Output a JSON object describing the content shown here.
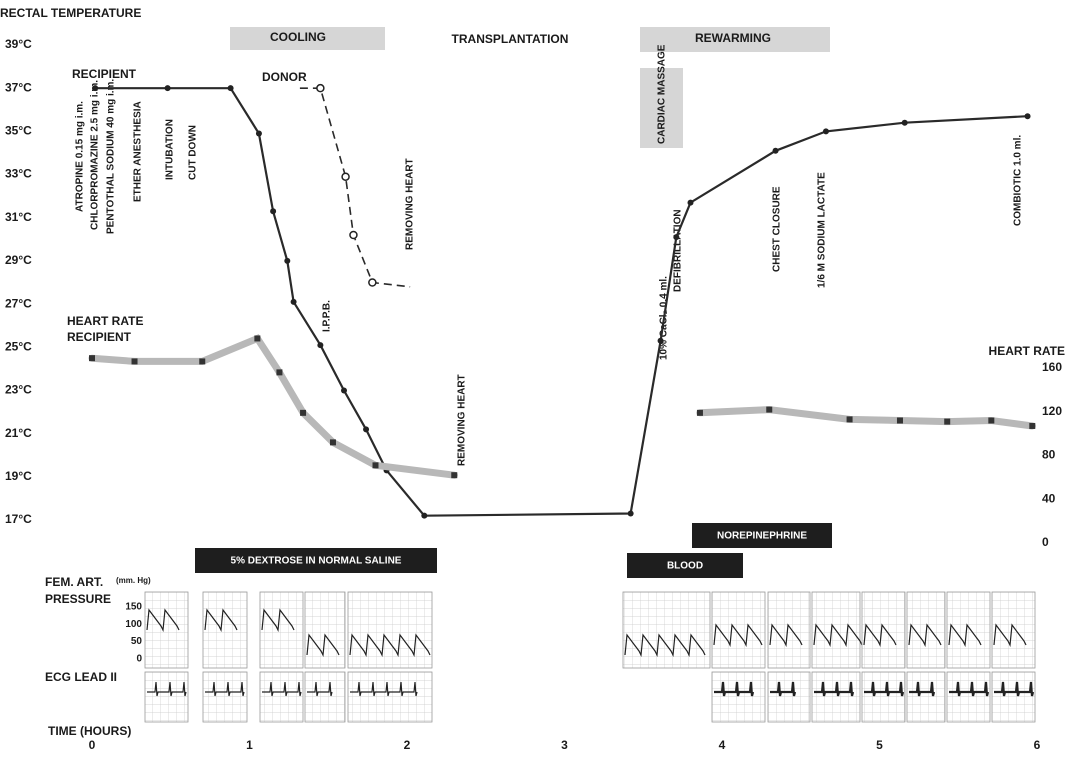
{
  "chart_data": {
    "type": "line",
    "y_label": "RECTAL TEMPERATURE",
    "y2_label": "HEART RATE",
    "x_label": "TIME (HOURS)",
    "xlim": [
      0,
      6
    ],
    "xticks": [
      0,
      1,
      2,
      3,
      4,
      5,
      6
    ],
    "ylim": [
      17,
      39
    ],
    "yticks": [
      {
        "value": 39,
        "label": "39°C"
      },
      {
        "value": 37,
        "label": "37°C"
      },
      {
        "value": 35,
        "label": "35°C"
      },
      {
        "value": 33,
        "label": "33°C"
      },
      {
        "value": 31,
        "label": "31°C"
      },
      {
        "value": 29,
        "label": "29°C"
      },
      {
        "value": 27,
        "label": "27°C"
      },
      {
        "value": 25,
        "label": "25°C"
      },
      {
        "value": 23,
        "label": "23°C"
      },
      {
        "value": 21,
        "label": "21°C"
      },
      {
        "value": 19,
        "label": "19°C"
      },
      {
        "value": 17,
        "label": "17°C"
      }
    ],
    "y2lim": [
      0,
      160
    ],
    "y2ticks": [
      0,
      40,
      80,
      120,
      160
    ],
    "series": [
      {
        "name": "RECIPIENT",
        "color": "#2a2a2a",
        "style": "solid",
        "x": [
          0.02,
          0.48,
          0.88,
          1.06,
          1.15,
          1.24,
          1.28,
          1.45,
          1.6,
          1.74,
          1.87,
          2.11,
          3.42,
          3.61,
          3.71,
          3.8,
          4.34,
          4.66,
          5.16,
          5.94
        ],
        "values": [
          37,
          37,
          37,
          34.9,
          31.3,
          29,
          27.1,
          25.1,
          23,
          21.2,
          19.3,
          17.2,
          17.3,
          25.3,
          30.1,
          31.7,
          34.1,
          35,
          35.4,
          35.7
        ]
      },
      {
        "name": "DONOR",
        "color": "#2a2a2a",
        "style": "dashed",
        "x": [
          1.32,
          1.45,
          1.61,
          1.66,
          1.78,
          2.02
        ],
        "values": [
          37,
          37,
          32.9,
          30.2,
          28,
          27.8
        ]
      },
      {
        "label": "HEART RATE",
        "name": "RECIPIENT",
        "color": "#b8b8b8",
        "axis": "y2",
        "style": "thick",
        "x": [
          0,
          0.27,
          0.7,
          1.05,
          1.19,
          1.34,
          1.53,
          1.8,
          2.3,
          null,
          3.86,
          4.3,
          4.81,
          5.13,
          5.43,
          5.71,
          5.97
        ],
        "values": [
          169,
          166,
          166,
          187,
          156,
          119,
          92,
          71,
          62,
          null,
          119,
          122,
          113,
          112,
          111,
          112,
          107
        ]
      }
    ],
    "boxes": [
      "COOLING",
      "TRANSPLANTATION",
      "REWARMING",
      "CARDIAC MASSAGE",
      "5% DEXTROSE IN NORMAL SALINE",
      "NOREPINEPHRINE",
      "BLOOD"
    ],
    "annotations": [
      "ATROPINE 0.15 mg i.m.",
      "CHLORPROMAZINE 2.5 mg i.m.",
      "PENTOTHAL SODIUM 40 mg i.m.",
      "ETHER ANESTHESIA",
      "INTUBATION",
      "CUT DOWN",
      "REMOVING HEART",
      "I.P.P.B.",
      "REMOVING HEART",
      "10% CaCl₂ 0.4 ml.",
      "DEFIBRILLATION",
      "CHEST CLOSURE",
      "1/6 M SODIUM LACTATE",
      "COMBIOTIC 1.0 ml."
    ],
    "pressure_panel": {
      "title": "FEM. ART.",
      "unit": "(mm. Hg)",
      "title2": "PRESSURE",
      "ticks": [
        150,
        100,
        50,
        0
      ],
      "ecg_label": "ECG LEAD II"
    }
  }
}
